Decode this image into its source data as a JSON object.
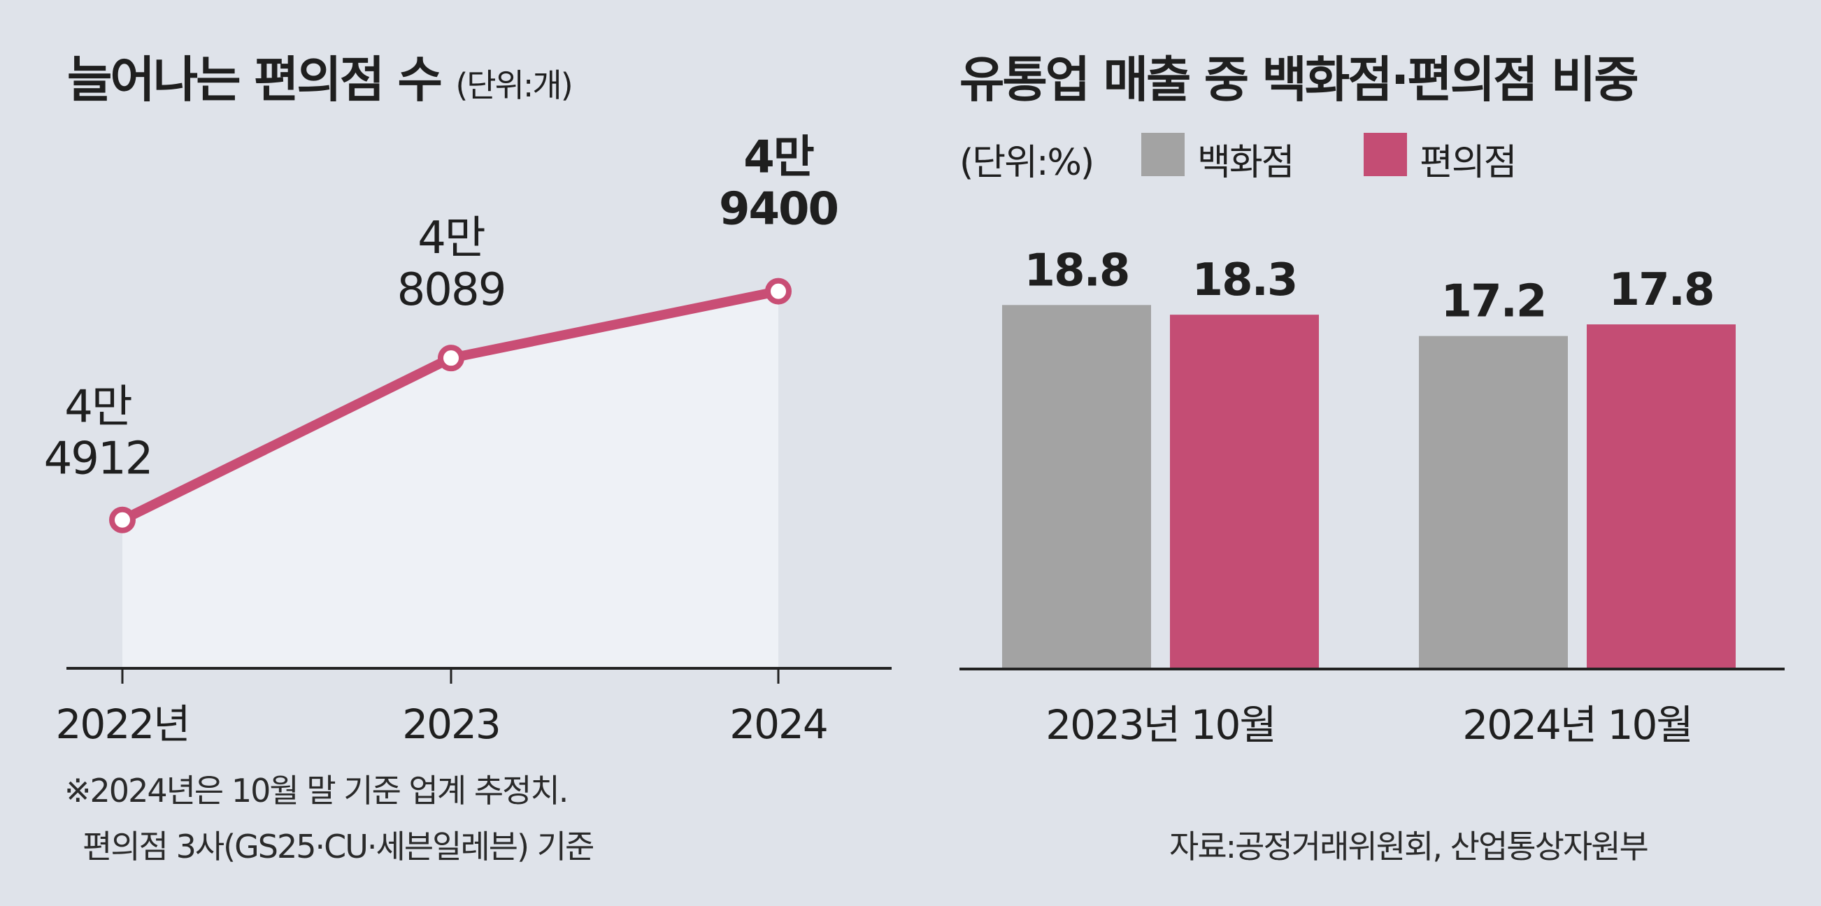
{
  "left_chart": {
    "title": "늘어나는 편의점 수",
    "unit": "(단위:개)",
    "footnote_line1": "※2024년은 10월 말 기준 업계 추정치.",
    "footnote_line2": "편의점 3사(GS25·CU·세븐일레븐) 기준",
    "line_color": "#c94e75",
    "fill_color": "#eef1f6"
  },
  "right_chart": {
    "title": "유통업 매출 중 백화점·편의점 비중",
    "unit": "(단위:%)",
    "legend": [
      {
        "label": "백화점",
        "color": "#a3a3a3"
      },
      {
        "label": "편의점",
        "color": "#c44d74"
      }
    ],
    "source": "자료:공정거래위원회, 산업통상자원부"
  },
  "chart_data": [
    {
      "type": "line",
      "title": "늘어나는 편의점 수",
      "unit": "(단위:개)",
      "categories": [
        "2022년",
        "2023",
        "2024"
      ],
      "values": [
        44912,
        48089,
        49400
      ],
      "data_labels": [
        {
          "line1": "4만",
          "line2": "4912"
        },
        {
          "line1": "4만",
          "line2": "8089"
        },
        {
          "line1": "4만",
          "line2": "9400"
        }
      ],
      "ylim": [
        42000,
        51000
      ],
      "grid": false
    },
    {
      "type": "bar",
      "title": "유통업 매출 중 백화점·편의점 비중",
      "unit": "(단위:%)",
      "categories": [
        "2023년 10월",
        "2024년 10월"
      ],
      "series": [
        {
          "name": "백화점",
          "values": [
            18.8,
            17.2
          ],
          "labels": [
            "18.8",
            "17.2"
          ]
        },
        {
          "name": "편의점",
          "values": [
            18.3,
            17.8
          ],
          "labels": [
            "18.3",
            "17.8"
          ]
        }
      ],
      "ylim": [
        0,
        23
      ],
      "legend": "top-left",
      "grid": false
    }
  ]
}
